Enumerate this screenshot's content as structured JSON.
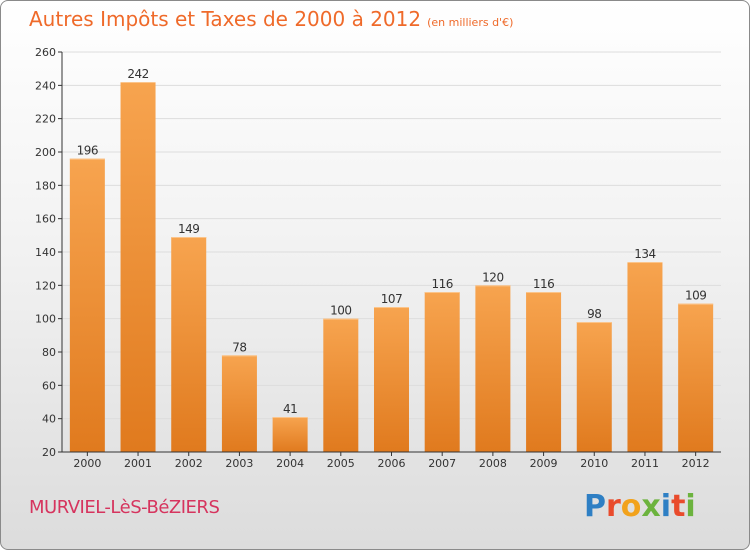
{
  "header": {
    "title": "Autres Impôts et Taxes de 2000 à 2012",
    "subtitle": "(en milliers d'€)"
  },
  "footer": {
    "commune": "MURVIEL-LèS-BéZIERS",
    "logo_letters": [
      "P",
      "r",
      "o",
      "x",
      "i",
      "t",
      "i"
    ],
    "logo_colors": [
      "#2e7fc4",
      "#e94b2c",
      "#f2a21c",
      "#6cb33e",
      "#2e7fc4",
      "#e94b2c",
      "#6cb33e"
    ]
  },
  "colors": {
    "bar_light": "#f7a44f",
    "bar_dark": "#e07a1e",
    "axis": "#333333",
    "grid": "#dddddd"
  },
  "chart_data": {
    "type": "bar",
    "title": "Autres Impôts et Taxes de 2000 à 2012",
    "subtitle": "(en milliers d'€)",
    "categories": [
      "2000",
      "2001",
      "2002",
      "2003",
      "2004",
      "2005",
      "2006",
      "2007",
      "2008",
      "2009",
      "2010",
      "2011",
      "2012"
    ],
    "values": [
      196,
      242,
      149,
      78,
      41,
      100,
      107,
      116,
      120,
      116,
      98,
      134,
      109
    ],
    "ylim": [
      20,
      260
    ],
    "yticks": [
      20,
      40,
      60,
      80,
      100,
      120,
      140,
      160,
      180,
      200,
      220,
      240,
      260
    ],
    "grid": true,
    "data_labels": true
  }
}
